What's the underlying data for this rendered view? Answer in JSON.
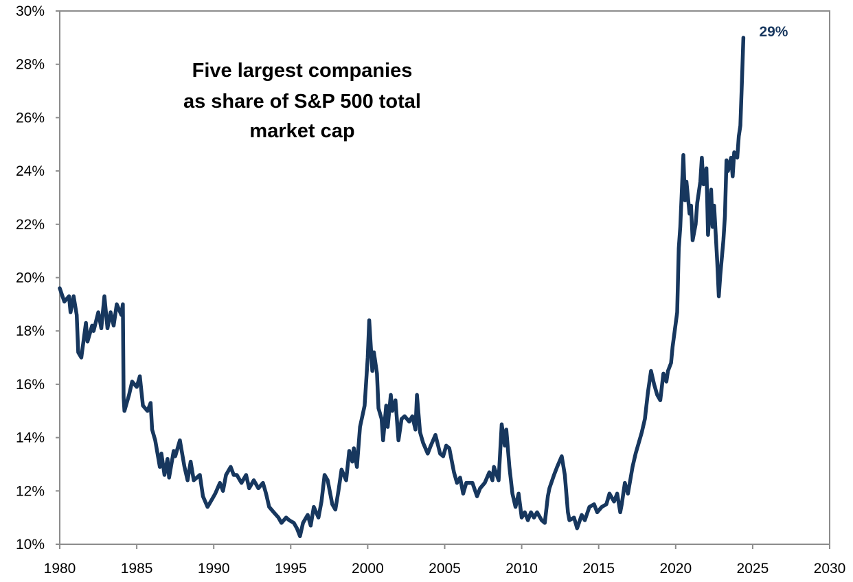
{
  "chart_data": {
    "type": "line",
    "title_lines": [
      "Five largest companies",
      "as share of S&P 500 total",
      "market cap"
    ],
    "xlabel": "",
    "ylabel": "",
    "xlim": [
      1980,
      2030
    ],
    "ylim": [
      10,
      30
    ],
    "x_ticks": [
      "1980",
      "1985",
      "1990",
      "1995",
      "2000",
      "2005",
      "2010",
      "2015",
      "2020",
      "2025",
      "2030"
    ],
    "y_ticks": [
      "10%",
      "12%",
      "14%",
      "16%",
      "18%",
      "20%",
      "22%",
      "24%",
      "26%",
      "28%",
      "30%"
    ],
    "grid": false,
    "legend": "none",
    "line_color": "#17375E",
    "annotation": {
      "text": "29%",
      "x": 2024.4,
      "y": 29.0
    },
    "series": [
      {
        "x": [
          1980.0,
          1980.3,
          1980.6,
          1980.7,
          1980.9,
          1981.1,
          1981.2,
          1981.4,
          1981.7,
          1981.8,
          1982.1,
          1982.2,
          1982.5,
          1982.7,
          1982.9,
          1983.1,
          1983.3,
          1983.5,
          1983.7,
          1984.0,
          1984.1,
          1984.15,
          1984.2,
          1984.5,
          1984.7,
          1985.0,
          1985.2,
          1985.4,
          1985.7,
          1985.9,
          1986.0,
          1986.2,
          1986.5,
          1986.6,
          1986.8,
          1987.0,
          1987.1,
          1987.4,
          1987.5,
          1987.8,
          1988.1,
          1988.3,
          1988.5,
          1988.7,
          1989.1,
          1989.3,
          1989.6,
          1989.9,
          1990.1,
          1990.4,
          1990.6,
          1990.8,
          1991.1,
          1991.3,
          1991.5,
          1991.8,
          1992.1,
          1992.3,
          1992.6,
          1992.9,
          1993.2,
          1993.4,
          1993.6,
          1993.9,
          1994.2,
          1994.4,
          1994.7,
          1994.9,
          1995.2,
          1995.4,
          1995.6,
          1995.8,
          1996.1,
          1996.3,
          1996.5,
          1996.8,
          1997.0,
          1997.2,
          1997.4,
          1997.7,
          1997.9,
          1998.1,
          1998.3,
          1998.6,
          1998.8,
          1999.0,
          1999.1,
          1999.3,
          1999.5,
          1999.8,
          2000.0,
          2000.1,
          2000.3,
          2000.4,
          2000.6,
          2000.7,
          2000.9,
          2001.0,
          2001.2,
          2001.3,
          2001.5,
          2001.6,
          2001.8,
          2002.0,
          2002.2,
          2002.4,
          2002.7,
          2002.9,
          2003.1,
          2003.2,
          2003.4,
          2003.6,
          2003.9,
          2004.1,
          2004.4,
          2004.7,
          2004.9,
          2005.1,
          2005.3,
          2005.6,
          2005.8,
          2006.0,
          2006.2,
          2006.4,
          2006.8,
          2007.1,
          2007.3,
          2007.6,
          2007.9,
          2008.1,
          2008.2,
          2008.5,
          2008.7,
          2008.9,
          2009.0,
          2009.2,
          2009.4,
          2009.6,
          2009.8,
          2010.0,
          2010.2,
          2010.4,
          2010.6,
          2010.8,
          2011.0,
          2011.3,
          2011.5,
          2011.7,
          2011.8,
          2012.1,
          2012.3,
          2012.6,
          2012.8,
          2013.0,
          2013.1,
          2013.4,
          2013.6,
          2013.9,
          2014.1,
          2014.4,
          2014.7,
          2014.9,
          2015.2,
          2015.5,
          2015.7,
          2016.0,
          2016.2,
          2016.4,
          2016.5,
          2016.7,
          2016.9,
          2017.2,
          2017.4,
          2017.6,
          2017.8,
          2018.0,
          2018.2,
          2018.4,
          2018.6,
          2018.8,
          2019.0,
          2019.2,
          2019.4,
          2019.5,
          2019.7,
          2019.8,
          2020.1,
          2020.2,
          2020.3,
          2020.5,
          2020.6,
          2020.7,
          2020.9,
          2021.0,
          2021.1,
          2021.3,
          2021.4,
          2021.6,
          2021.7,
          2021.8,
          2022.0,
          2022.1,
          2022.3,
          2022.4,
          2022.5,
          2022.7,
          2022.8,
          2022.9,
          2023.1,
          2023.2,
          2023.3,
          2023.4,
          2023.6,
          2023.7,
          2023.8,
          2024.0,
          2024.1,
          2024.2,
          2024.3,
          2024.4
        ],
        "y": [
          19.6,
          19.1,
          19.3,
          18.7,
          19.3,
          18.6,
          17.2,
          17.0,
          18.3,
          17.6,
          18.2,
          18.0,
          18.7,
          18.1,
          19.3,
          18.1,
          18.7,
          18.2,
          19.0,
          18.6,
          19.0,
          15.5,
          15.0,
          15.6,
          16.1,
          15.9,
          16.3,
          15.2,
          15.0,
          15.3,
          14.3,
          13.9,
          12.9,
          13.4,
          12.6,
          13.2,
          12.5,
          13.5,
          13.3,
          13.9,
          12.9,
          12.4,
          13.1,
          12.4,
          12.6,
          11.8,
          11.4,
          11.7,
          11.9,
          12.3,
          12.0,
          12.6,
          12.9,
          12.6,
          12.6,
          12.3,
          12.6,
          12.1,
          12.4,
          12.1,
          12.3,
          11.9,
          11.4,
          11.2,
          11.0,
          10.8,
          11.0,
          10.9,
          10.8,
          10.6,
          10.3,
          10.8,
          11.1,
          10.7,
          11.4,
          11.0,
          11.6,
          12.6,
          12.4,
          11.5,
          11.3,
          12.0,
          12.8,
          12.4,
          13.5,
          13.1,
          13.6,
          12.9,
          14.4,
          15.2,
          17.0,
          18.4,
          16.5,
          17.2,
          16.4,
          15.1,
          14.7,
          13.9,
          15.2,
          14.4,
          15.6,
          15.0,
          15.4,
          13.9,
          14.7,
          14.8,
          14.6,
          14.8,
          14.3,
          15.6,
          14.2,
          13.8,
          13.4,
          13.7,
          14.1,
          13.4,
          13.3,
          13.7,
          13.6,
          12.7,
          12.3,
          12.5,
          11.9,
          12.3,
          12.3,
          11.8,
          12.1,
          12.3,
          12.7,
          12.4,
          12.9,
          12.4,
          14.5,
          13.7,
          14.3,
          12.9,
          11.9,
          11.4,
          11.9,
          11.0,
          11.2,
          10.9,
          11.2,
          11.0,
          11.2,
          10.9,
          10.8,
          11.8,
          12.1,
          12.6,
          12.9,
          13.3,
          12.6,
          11.2,
          10.9,
          11.0,
          10.6,
          11.1,
          10.9,
          11.4,
          11.5,
          11.2,
          11.4,
          11.5,
          11.9,
          11.6,
          11.9,
          11.2,
          11.5,
          12.3,
          11.9,
          12.9,
          13.4,
          13.8,
          14.2,
          14.7,
          15.7,
          16.5,
          16.0,
          15.6,
          15.4,
          16.4,
          16.1,
          16.5,
          16.8,
          17.4,
          18.7,
          21.1,
          21.9,
          24.6,
          22.9,
          23.6,
          22.4,
          22.7,
          21.4,
          22.0,
          22.8,
          23.6,
          24.5,
          23.5,
          24.1,
          21.6,
          23.3,
          21.9,
          22.7,
          20.6,
          19.3,
          20.1,
          21.4,
          22.3,
          24.4,
          24.0,
          24.5,
          23.8,
          24.7,
          24.5,
          25.3,
          25.7,
          27.3,
          29.0
        ]
      }
    ]
  }
}
